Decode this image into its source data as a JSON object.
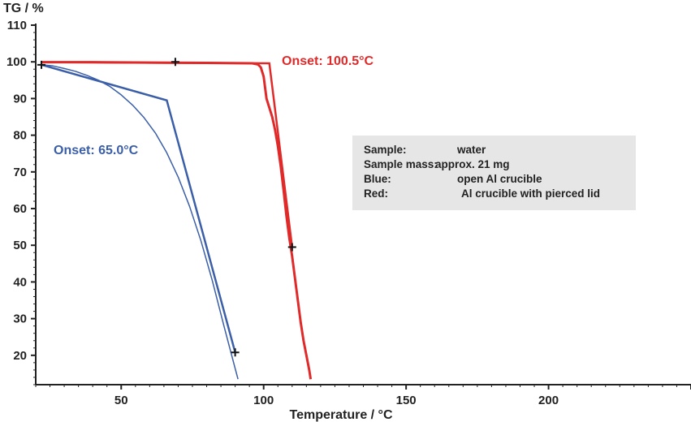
{
  "chart_data": {
    "type": "line",
    "xlabel": "Temperature / °C",
    "ylabel": "TG / %",
    "xlim": [
      20,
      250
    ],
    "ylim": [
      12,
      110
    ],
    "xticks": [
      50,
      100,
      150,
      200
    ],
    "yticks": [
      20,
      30,
      40,
      50,
      60,
      70,
      80,
      90,
      100,
      110
    ],
    "colors": {
      "blue": "#3a5ea8",
      "red": "#e02a2a",
      "axis": "#222222"
    },
    "series": [
      {
        "color": "#3a5ea8",
        "x": [
          22,
          26,
          30,
          34,
          38,
          42,
          46,
          50,
          54,
          58,
          62,
          66,
          70,
          74,
          78,
          82,
          86,
          90,
          91
        ],
        "y": [
          99.2,
          98.9,
          98.2,
          97.4,
          96.3,
          95.0,
          93.3,
          91.0,
          88.2,
          84.8,
          80.6,
          75.2,
          68.6,
          60.6,
          51.2,
          40.3,
          28.2,
          16.4,
          13.5
        ]
      },
      {
        "color": "#e02a2a",
        "x": [
          22,
          40,
          60,
          80,
          96,
          98,
          99,
          100,
          100.5,
          101,
          102,
          103,
          104,
          105,
          106,
          107,
          108,
          109,
          110,
          111,
          112,
          113,
          114,
          115,
          116,
          116.5
        ],
        "y": [
          99.9,
          99.9,
          99.8,
          99.7,
          99.6,
          99.3,
          98.5,
          96.0,
          93.0,
          90.0,
          87.5,
          85.0,
          81.5,
          77.0,
          71.5,
          65.0,
          58.0,
          52.0,
          47.0,
          41.0,
          35.0,
          29.0,
          24.0,
          20.0,
          16.0,
          13.5
        ]
      }
    ],
    "tangents": [
      {
        "color": "#3a5ea8",
        "points": [
          [
            22,
            99.2
          ],
          [
            66,
            89.5
          ],
          [
            90,
            20.8
          ]
        ]
      },
      {
        "color": "#e02a2a",
        "points": [
          [
            22,
            99.9
          ],
          [
            102,
            99.6
          ],
          [
            110,
            49.5
          ]
        ]
      }
    ],
    "markers": [
      {
        "x": 22,
        "y": 99.2
      },
      {
        "x": 69,
        "y": 100
      },
      {
        "x": 90,
        "y": 20.8
      },
      {
        "x": 110,
        "y": 49.5
      }
    ],
    "annotations": [
      {
        "text": "Onset: 65.0°C",
        "color": "#3a5ea8"
      },
      {
        "text": "Onset: 100.5°C",
        "color": "#e02a2a"
      }
    ],
    "legend": {
      "placement": "right",
      "rows": [
        {
          "key": "Sample:",
          "value": "water"
        },
        {
          "key": "Sample mass:",
          "value": "approx. 21 mg"
        },
        {
          "key": "Blue:",
          "value": "open Al crucible"
        },
        {
          "key": "Red:",
          "value": "Al crucible with pierced lid"
        }
      ]
    }
  }
}
